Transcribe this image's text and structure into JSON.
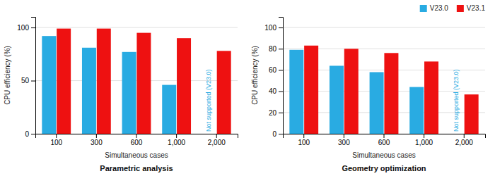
{
  "chart_data": [
    {
      "type": "bar",
      "title": "Parametric analysis",
      "xlabel": "Simultaneous cases",
      "ylabel": "CPU efficiency (%)",
      "categories": [
        "100",
        "300",
        "600",
        "1,000",
        "2,000"
      ],
      "series": [
        {
          "name": "V23.0",
          "color": "#29ABE2",
          "values": [
            92,
            81,
            77,
            46,
            null
          ]
        },
        {
          "name": "V23.1",
          "color": "#EE1111",
          "values": [
            99,
            99,
            95,
            90,
            78
          ]
        }
      ],
      "annotations": [
        {
          "text": "Not supported (V23.0)",
          "x": "2,000",
          "color": "#29ABE2"
        }
      ],
      "ylim": [
        0,
        110
      ],
      "yticks": [
        0,
        50,
        100
      ],
      "grid": true
    },
    {
      "type": "bar",
      "title": "Geometry optimization",
      "xlabel": "Simultaneous cases",
      "ylabel": "CPU efficiency (%)",
      "categories": [
        "100",
        "300",
        "600",
        "1,000",
        "2,000"
      ],
      "series": [
        {
          "name": "V23.0",
          "color": "#29ABE2",
          "values": [
            79,
            64,
            58,
            44,
            null
          ]
        },
        {
          "name": "V23.1",
          "color": "#EE1111",
          "values": [
            83,
            80,
            76,
            68,
            37
          ]
        }
      ],
      "annotations": [
        {
          "text": "Not supported (V23.0)",
          "x": "2,000",
          "color": "#29ABE2"
        }
      ],
      "ylim": [
        0,
        110
      ],
      "yticks": [
        0,
        20,
        40,
        60,
        80,
        100
      ],
      "grid": true,
      "legend": "upper right"
    }
  ]
}
